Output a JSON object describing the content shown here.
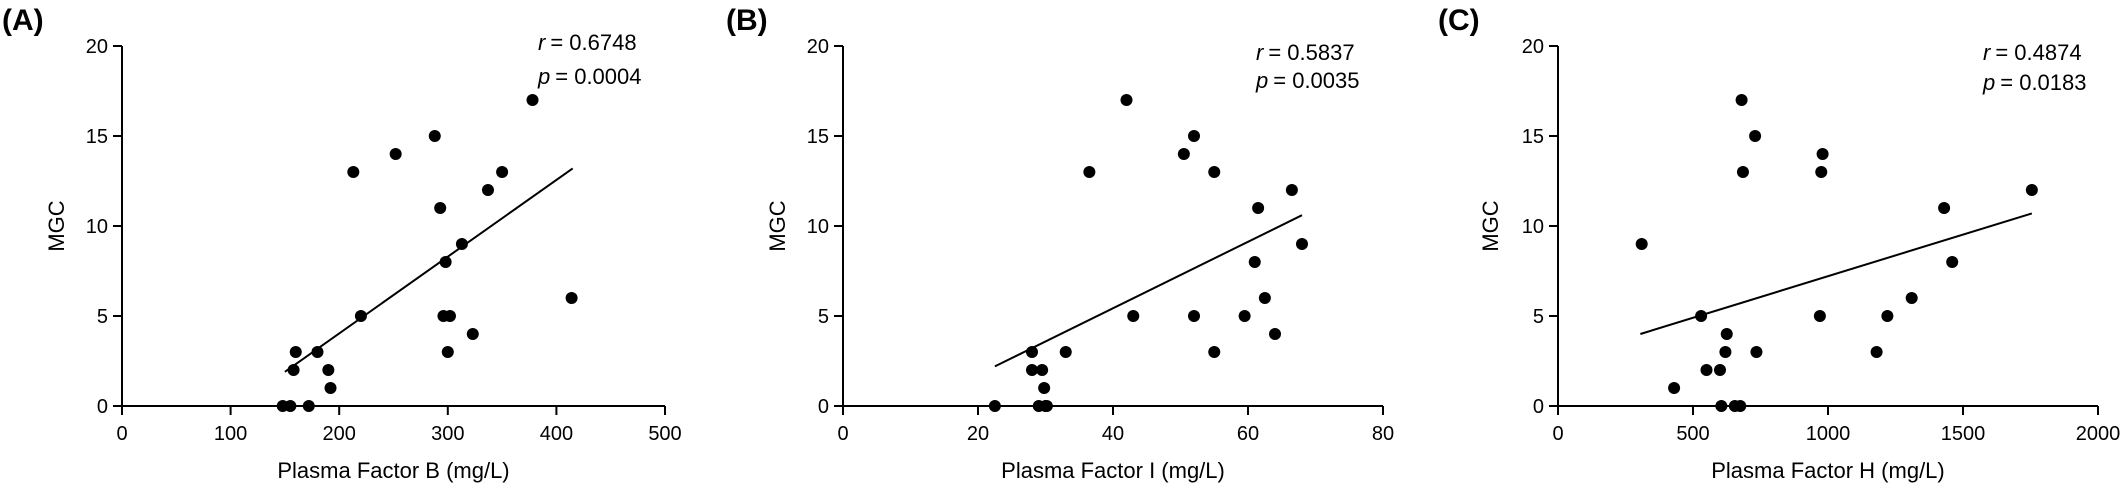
{
  "chart_data": [
    {
      "type": "scatter",
      "panel_label": "(A)",
      "title": "",
      "xlabel": "Plasma Factor B (mg/L)",
      "ylabel": "MGC",
      "xlim": [
        0,
        500
      ],
      "ylim": [
        0,
        20
      ],
      "xticks": [
        0,
        100,
        200,
        300,
        400,
        500
      ],
      "yticks": [
        0,
        5,
        10,
        15,
        20
      ],
      "stats": {
        "r_symbol": "r",
        "r_value": "= 0.6748",
        "p_symbol": "p",
        "p_value": "= 0.0004"
      },
      "fit_line": {
        "x": [
          150,
          415
        ],
        "y": [
          1.9,
          13.2
        ]
      },
      "points": [
        [
          148,
          0
        ],
        [
          155,
          0
        ],
        [
          172,
          0
        ],
        [
          158,
          2
        ],
        [
          160,
          3
        ],
        [
          180,
          3
        ],
        [
          190,
          2
        ],
        [
          192,
          1
        ],
        [
          213,
          13
        ],
        [
          220,
          5
        ],
        [
          252,
          14
        ],
        [
          288,
          15
        ],
        [
          293,
          11
        ],
        [
          296,
          5
        ],
        [
          298,
          8
        ],
        [
          300,
          3
        ],
        [
          302,
          5
        ],
        [
          313,
          9
        ],
        [
          323,
          4
        ],
        [
          337,
          12
        ],
        [
          350,
          13
        ],
        [
          378,
          17
        ],
        [
          414,
          6
        ]
      ]
    },
    {
      "type": "scatter",
      "panel_label": "(B)",
      "title": "",
      "xlabel": "Plasma Factor I (mg/L)",
      "ylabel": "MGC",
      "xlim": [
        0,
        80
      ],
      "ylim": [
        0,
        20
      ],
      "xticks": [
        0,
        20,
        40,
        60,
        80
      ],
      "yticks": [
        0,
        5,
        10,
        15,
        20
      ],
      "stats": {
        "r_symbol": "r",
        "r_value": "= 0.5837",
        "p_symbol": "p",
        "p_value": "= 0.0035"
      },
      "fit_line": {
        "x": [
          22.5,
          68
        ],
        "y": [
          2.2,
          10.6
        ]
      },
      "points": [
        [
          22.5,
          0
        ],
        [
          28,
          3
        ],
        [
          28,
          2
        ],
        [
          29,
          0
        ],
        [
          30,
          0
        ],
        [
          29.5,
          2
        ],
        [
          29.8,
          1
        ],
        [
          30.2,
          0
        ],
        [
          33,
          3
        ],
        [
          36.5,
          13
        ],
        [
          42,
          17
        ],
        [
          43,
          5
        ],
        [
          50.5,
          14
        ],
        [
          52,
          15
        ],
        [
          52,
          5
        ],
        [
          55,
          13
        ],
        [
          55,
          3
        ],
        [
          59.5,
          5
        ],
        [
          61,
          8
        ],
        [
          61.5,
          11
        ],
        [
          62.5,
          6
        ],
        [
          64,
          4
        ],
        [
          66.5,
          12
        ],
        [
          68,
          9
        ]
      ]
    },
    {
      "type": "scatter",
      "panel_label": "(C)",
      "title": "",
      "xlabel": "Plasma Factor H (mg/L)",
      "ylabel": "MGC",
      "xlim": [
        0,
        2000
      ],
      "ylim": [
        0,
        20
      ],
      "xticks": [
        0,
        500,
        1000,
        1500,
        2000
      ],
      "yticks": [
        0,
        5,
        10,
        15,
        20
      ],
      "stats": {
        "r_symbol": "r",
        "r_value": "= 0.4874",
        "p_symbol": "p",
        "p_value": "= 0.0183"
      },
      "fit_line": {
        "x": [
          305,
          1755
        ],
        "y": [
          4.0,
          10.7
        ]
      },
      "points": [
        [
          310,
          9
        ],
        [
          430,
          1
        ],
        [
          530,
          5
        ],
        [
          550,
          2
        ],
        [
          600,
          2
        ],
        [
          605,
          0
        ],
        [
          620,
          3
        ],
        [
          625,
          4
        ],
        [
          655,
          0
        ],
        [
          675,
          0
        ],
        [
          680,
          17
        ],
        [
          685,
          13
        ],
        [
          730,
          15
        ],
        [
          735,
          3
        ],
        [
          970,
          5
        ],
        [
          975,
          13
        ],
        [
          980,
          14
        ],
        [
          1180,
          3
        ],
        [
          1220,
          5
        ],
        [
          1310,
          6
        ],
        [
          1430,
          11
        ],
        [
          1460,
          8
        ],
        [
          1755,
          12
        ]
      ]
    }
  ]
}
